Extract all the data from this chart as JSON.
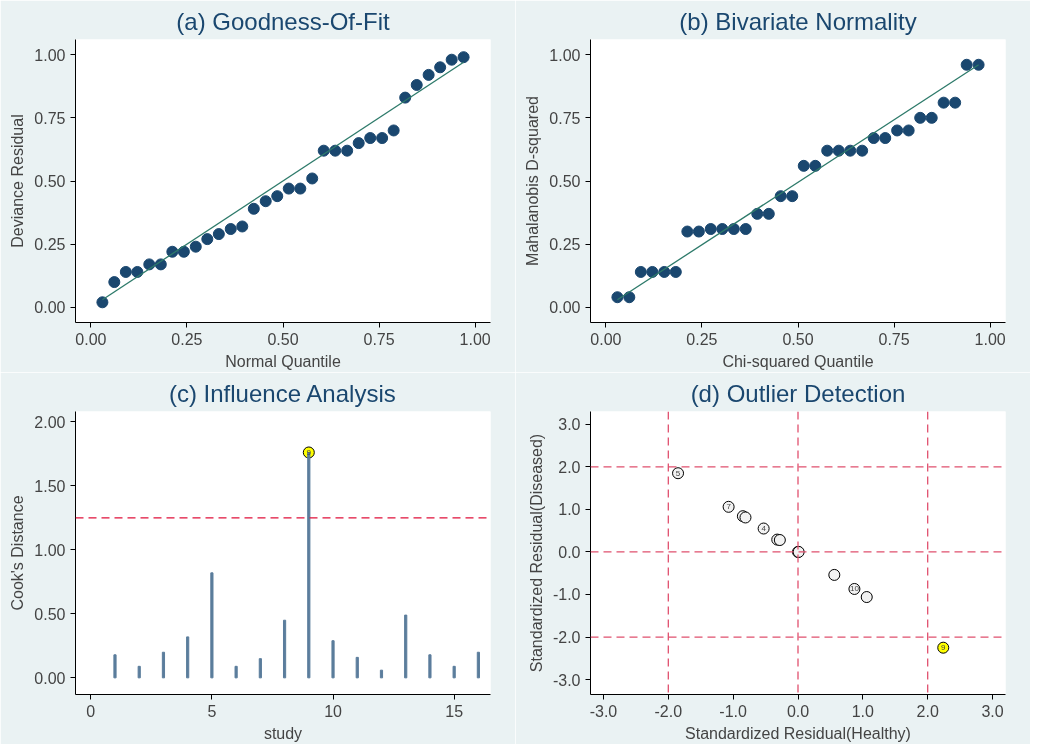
{
  "chart_data": [
    {
      "type": "scatter",
      "title": "(a) Goodness-Of-Fit",
      "xlabel": "Normal Quantile",
      "ylabel": "Deviance Residual",
      "xlim": [
        -0.04,
        1.04
      ],
      "ylim": [
        -0.06,
        1.06
      ],
      "xticks": [
        {
          "value": 0,
          "label": "0.00"
        },
        {
          "value": 0.25,
          "label": "0.25"
        },
        {
          "value": 0.5,
          "label": "0.50"
        },
        {
          "value": 0.75,
          "label": "0.75"
        },
        {
          "value": 1,
          "label": "1.00"
        }
      ],
      "yticks": [
        {
          "value": 0,
          "label": "0.00"
        },
        {
          "value": 0.25,
          "label": "0.25"
        },
        {
          "value": 0.5,
          "label": "0.50"
        },
        {
          "value": 0.75,
          "label": "0.75"
        },
        {
          "value": 1,
          "label": "1.00"
        }
      ],
      "grid": false,
      "series": [
        {
          "marker": "circle",
          "color": "#1a476f",
          "x": [
            0.03,
            0.061,
            0.091,
            0.121,
            0.152,
            0.182,
            0.212,
            0.242,
            0.273,
            0.303,
            0.333,
            0.364,
            0.394,
            0.424,
            0.455,
            0.485,
            0.515,
            0.545,
            0.576,
            0.606,
            0.636,
            0.667,
            0.697,
            0.727,
            0.758,
            0.788,
            0.818,
            0.848,
            0.879,
            0.909,
            0.939,
            0.97
          ],
          "values": [
            0.02,
            0.1,
            0.14,
            0.14,
            0.17,
            0.17,
            0.22,
            0.22,
            0.24,
            0.27,
            0.29,
            0.31,
            0.32,
            0.39,
            0.42,
            0.44,
            0.47,
            0.47,
            0.51,
            0.62,
            0.62,
            0.62,
            0.65,
            0.67,
            0.67,
            0.7,
            0.83,
            0.88,
            0.92,
            0.95,
            0.98,
            0.99
          ]
        },
        {
          "type": "line",
          "marker": "none",
          "color": "#2d7a6a",
          "x": [
            0.03,
            0.97
          ],
          "values": [
            0.03,
            0.97
          ]
        }
      ]
    },
    {
      "type": "scatter",
      "title": "(b) Bivariate Normality",
      "xlabel": "Chi-squared Quantile",
      "ylabel": "Mahalanobis D-squared",
      "xlim": [
        -0.04,
        1.04
      ],
      "ylim": [
        -0.06,
        1.06
      ],
      "xticks": [
        {
          "value": 0,
          "label": "0.00"
        },
        {
          "value": 0.25,
          "label": "0.25"
        },
        {
          "value": 0.5,
          "label": "0.50"
        },
        {
          "value": 0.75,
          "label": "0.75"
        },
        {
          "value": 1,
          "label": "1.00"
        }
      ],
      "yticks": [
        {
          "value": 0,
          "label": "0.00"
        },
        {
          "value": 0.25,
          "label": "0.25"
        },
        {
          "value": 0.5,
          "label": "0.50"
        },
        {
          "value": 0.75,
          "label": "0.75"
        },
        {
          "value": 1,
          "label": "1.00"
        }
      ],
      "grid": false,
      "series": [
        {
          "marker": "circle",
          "color": "#1a476f",
          "x": [
            0.03,
            0.061,
            0.091,
            0.121,
            0.152,
            0.182,
            0.212,
            0.242,
            0.273,
            0.303,
            0.333,
            0.364,
            0.394,
            0.424,
            0.455,
            0.485,
            0.515,
            0.545,
            0.576,
            0.606,
            0.636,
            0.667,
            0.697,
            0.727,
            0.758,
            0.788,
            0.818,
            0.848,
            0.879,
            0.909,
            0.939,
            0.97
          ],
          "values": [
            0.04,
            0.04,
            0.14,
            0.14,
            0.14,
            0.14,
            0.3,
            0.3,
            0.31,
            0.31,
            0.31,
            0.31,
            0.37,
            0.37,
            0.44,
            0.44,
            0.56,
            0.56,
            0.62,
            0.62,
            0.62,
            0.62,
            0.67,
            0.67,
            0.7,
            0.7,
            0.75,
            0.75,
            0.81,
            0.81,
            0.96,
            0.96
          ]
        },
        {
          "type": "line",
          "marker": "none",
          "color": "#2d7a6a",
          "x": [
            0.03,
            0.97
          ],
          "values": [
            0.03,
            0.96
          ]
        }
      ]
    },
    {
      "type": "bar",
      "title": "(c) Influence Analysis",
      "xlabel": "study",
      "ylabel": "Cook's Distance",
      "xlim": [
        -0.63,
        16.5
      ],
      "ylim": [
        -0.13,
        2.08
      ],
      "xticks": [
        0,
        5,
        10,
        15
      ],
      "yticks": [
        {
          "value": 0,
          "label": "0.00"
        },
        {
          "value": 0.5,
          "label": "0.50"
        },
        {
          "value": 1,
          "label": "1.00"
        },
        {
          "value": 1.5,
          "label": "1.50"
        },
        {
          "value": 2,
          "label": "2.00"
        }
      ],
      "grid": false,
      "ref_lines": [
        {
          "axis": "y",
          "value": 1.25,
          "color": "#e0103a",
          "line_style": "dashed"
        }
      ],
      "annotations": [
        {
          "text": "9",
          "x": 9,
          "y": 1.76
        }
      ],
      "series": [
        {
          "type": "scatter",
          "marker": "circle",
          "color": "#ffff00",
          "x": [
            9
          ],
          "values": [
            1.76
          ]
        },
        {
          "color": "#5b7d9c",
          "x": [
            1,
            2,
            3,
            4,
            5,
            6,
            7,
            8,
            9,
            10,
            11,
            12,
            13,
            14,
            15,
            16
          ],
          "values": [
            0.18,
            0.09,
            0.2,
            0.32,
            0.82,
            0.09,
            0.15,
            0.45,
            1.76,
            0.29,
            0.16,
            0.06,
            0.49,
            0.18,
            0.09,
            0.2
          ]
        }
      ]
    },
    {
      "type": "scatter",
      "title": "(d) Outlier Detection",
      "xlabel": "Standardized Residual(Healthy)",
      "ylabel": "Standardized Residual(Diseased)",
      "xlim": [
        -3.2,
        3.2
      ],
      "ylim": [
        -3.35,
        3.3
      ],
      "xticks": [
        {
          "value": -3,
          "label": "-3.0"
        },
        {
          "value": -2,
          "label": "-2.0"
        },
        {
          "value": -1,
          "label": "-1.0"
        },
        {
          "value": 0,
          "label": "0.0"
        },
        {
          "value": 1,
          "label": "1.0"
        },
        {
          "value": 2,
          "label": "2.0"
        },
        {
          "value": 3,
          "label": "3.0"
        }
      ],
      "yticks": [
        {
          "value": -3,
          "label": "-3.0"
        },
        {
          "value": -2,
          "label": "-2.0"
        },
        {
          "value": -1,
          "label": "-1.0"
        },
        {
          "value": 0,
          "label": "0.0"
        },
        {
          "value": 1,
          "label": "1.0"
        },
        {
          "value": 2,
          "label": "2.0"
        },
        {
          "value": 3,
          "label": "3.0"
        }
      ],
      "marker": "circle",
      "grid": false,
      "ref_lines": [
        {
          "axis": "x",
          "value": -2,
          "color": "#e0506e",
          "line_style": "dashed"
        },
        {
          "axis": "x",
          "value": 0,
          "color": "#e0506e",
          "line_style": "dashed"
        },
        {
          "axis": "x",
          "value": 2,
          "color": "#e0506e",
          "line_style": "dashed"
        },
        {
          "axis": "y",
          "value": -2,
          "color": "#e0506e",
          "line_style": "dashed"
        },
        {
          "axis": "y",
          "value": 0,
          "color": "#e0506e",
          "line_style": "dashed"
        },
        {
          "axis": "y",
          "value": 2,
          "color": "#e0506e",
          "line_style": "dashed"
        }
      ],
      "annotations": [
        {
          "text": "5",
          "x": -1.85,
          "y": 1.85
        },
        {
          "text": "7",
          "x": -1.07,
          "y": 1.06
        },
        {
          "text": "4",
          "x": -0.53,
          "y": 0.55
        },
        {
          "text": "10",
          "x": 0.87,
          "y": -0.87
        },
        {
          "text": "9",
          "x": 2.24,
          "y": -2.25
        }
      ],
      "series": [
        {
          "color": "#f2f2f2",
          "x": [
            -1.85,
            -1.07,
            -0.85,
            -0.81,
            -0.53,
            -0.32,
            -0.28,
            0.0,
            0.01,
            0.56,
            0.87,
            1.06
          ],
          "values": [
            1.85,
            1.06,
            0.84,
            0.81,
            0.55,
            0.29,
            0.28,
            0.0,
            0.0,
            -0.54,
            -0.87,
            -1.06
          ]
        },
        {
          "color": "#ffff00",
          "x": [
            2.24
          ],
          "values": [
            -2.25
          ]
        }
      ]
    }
  ]
}
